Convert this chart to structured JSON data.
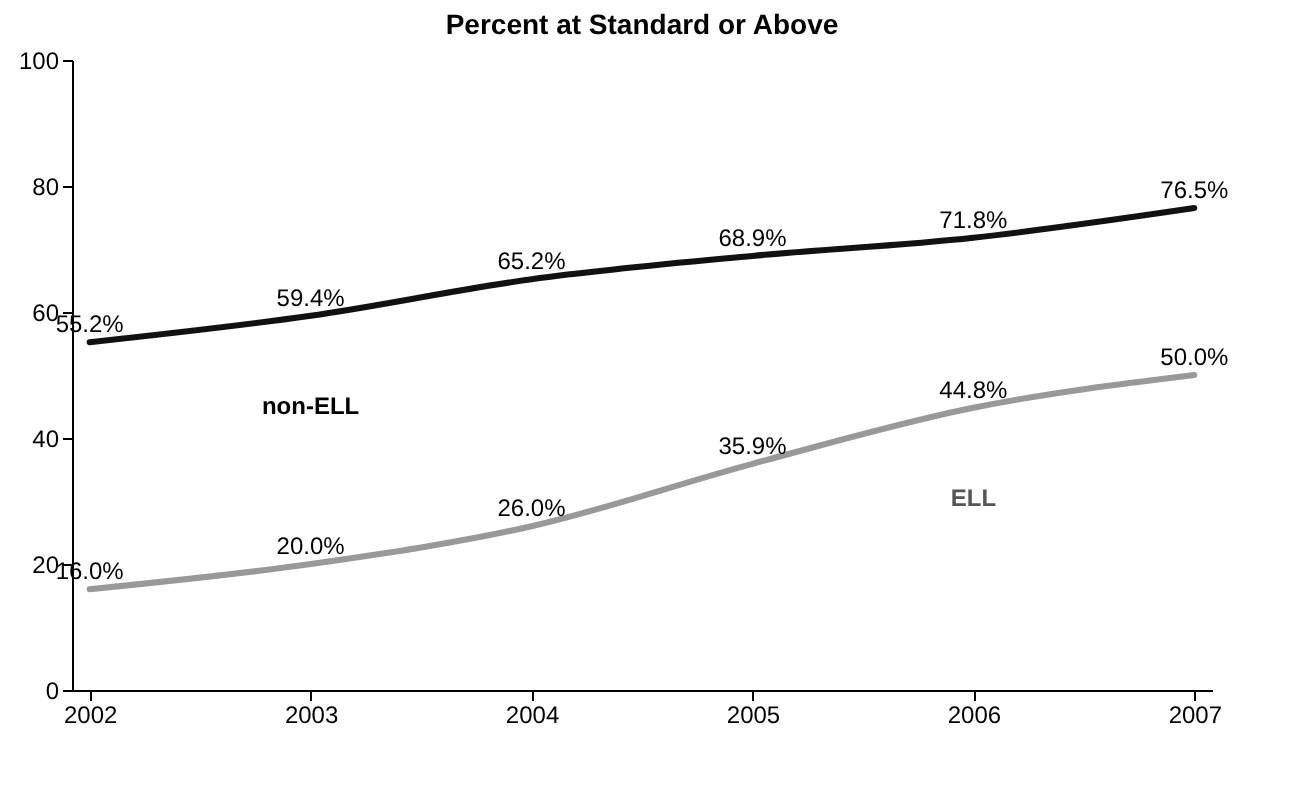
{
  "chart_data": {
    "type": "line",
    "title": "Percent at Standard or Above",
    "categories": [
      "2002",
      "2003",
      "2004",
      "2005",
      "2006",
      "2007"
    ],
    "series": [
      {
        "name": "non-ELL",
        "color": "#111111",
        "values": [
          55.2,
          59.4,
          65.2,
          68.9,
          71.8,
          76.5
        ],
        "value_labels": [
          "55.2%",
          "59.4%",
          "65.2%",
          "68.9%",
          "71.8%",
          "76.5%"
        ]
      },
      {
        "name": "ELL",
        "color": "#999999",
        "values": [
          16.0,
          20.0,
          26.0,
          35.9,
          44.8,
          50.0
        ],
        "value_labels": [
          "16.0%",
          "20.0%",
          "26.0%",
          "35.9%",
          "44.8%",
          "50.0%"
        ]
      }
    ],
    "ylim": [
      0,
      100
    ],
    "yticks": [
      0,
      20,
      40,
      60,
      80,
      100
    ],
    "grid": false,
    "legend": false,
    "marker": "none",
    "line_style": "solid"
  }
}
